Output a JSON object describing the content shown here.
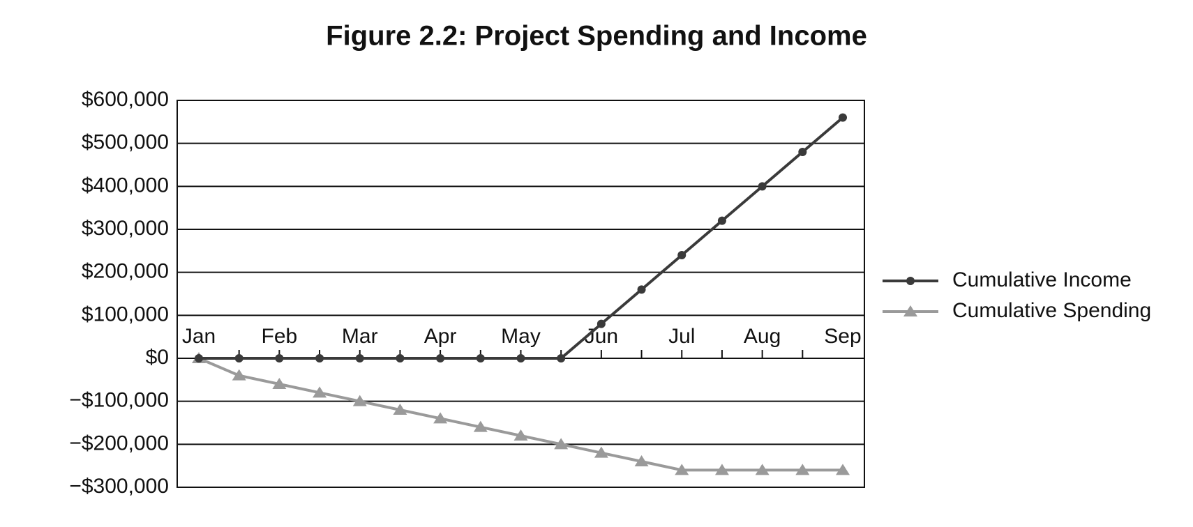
{
  "chart_data": {
    "type": "line",
    "title": "Figure 2.2: Project Spending and Income",
    "categories": [
      "Jan",
      null,
      "Feb",
      null,
      "Mar",
      null,
      "Apr",
      null,
      "May",
      null,
      "Jun",
      null,
      "Jul",
      null,
      "Aug",
      null,
      "Sep"
    ],
    "series": [
      {
        "name": "Cumulative Income",
        "color": "#3a3a3a",
        "marker": "circle",
        "values": [
          0,
          0,
          0,
          0,
          0,
          0,
          0,
          0,
          0,
          0,
          80000,
          160000,
          240000,
          320000,
          400000,
          480000,
          560000
        ]
      },
      {
        "name": "Cumulative Spending",
        "color": "#9a9a9a",
        "marker": "triangle",
        "values": [
          0,
          -40000,
          -60000,
          -80000,
          -100000,
          -120000,
          -140000,
          -160000,
          -180000,
          -200000,
          -220000,
          -240000,
          -260000,
          -260000,
          -260000,
          -260000,
          -260000
        ]
      }
    ],
    "ylim": [
      -300000,
      600000
    ],
    "yticks": [
      {
        "value": -300000,
        "label": "−$300,000"
      },
      {
        "value": -200000,
        "label": "−$200,000"
      },
      {
        "value": -100000,
        "label": "−$100,000"
      },
      {
        "value": 0,
        "label": "$0"
      },
      {
        "value": 100000,
        "label": "$100,000"
      },
      {
        "value": 200000,
        "label": "$200,000"
      },
      {
        "value": 300000,
        "label": "$300,000"
      },
      {
        "value": 400000,
        "label": "$400,000"
      },
      {
        "value": 500000,
        "label": "$500,000"
      },
      {
        "value": 600000,
        "label": "$600,000"
      }
    ],
    "grid": true,
    "legend": "right"
  }
}
